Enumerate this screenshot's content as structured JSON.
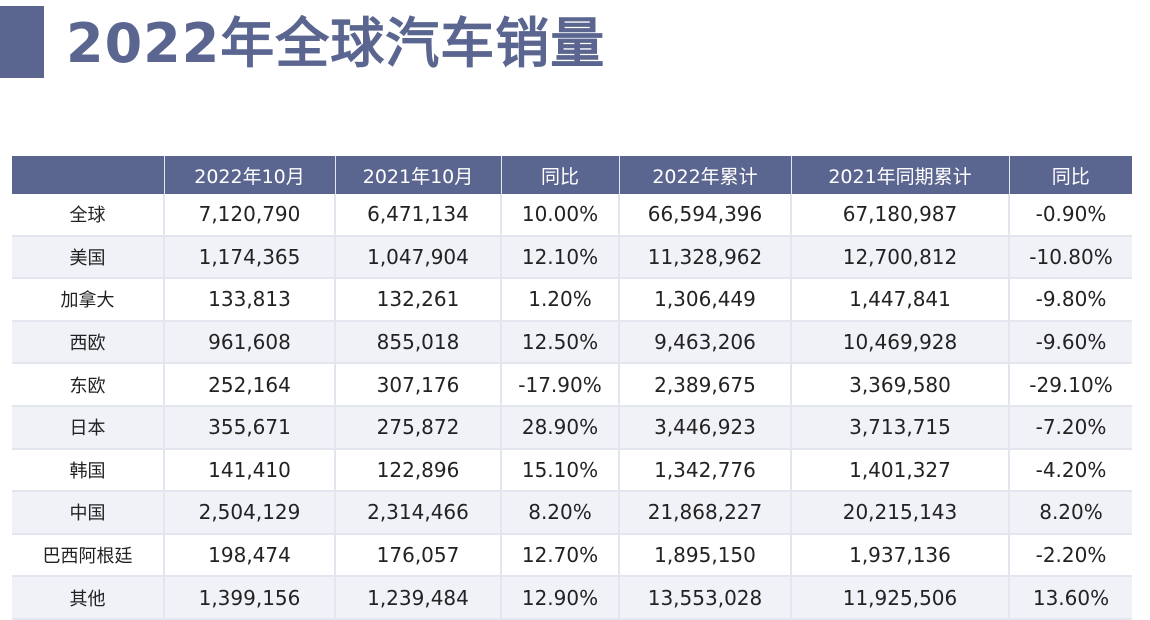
{
  "title": "2022年全球汽车销量",
  "chart_data": {
    "type": "table",
    "title": "2022年全球汽车销量",
    "columns": [
      "",
      "2022年10月",
      "2021年10月",
      "同比",
      "2022年累计",
      "2021年同期累计",
      "同比"
    ],
    "rows": [
      [
        "全球",
        "7,120,790",
        "6,471,134",
        "10.00%",
        "66,594,396",
        "67,180,987",
        "-0.90%"
      ],
      [
        "美国",
        "1,174,365",
        "1,047,904",
        "12.10%",
        "11,328,962",
        "12,700,812",
        "-10.80%"
      ],
      [
        "加拿大",
        "133,813",
        "132,261",
        "1.20%",
        "1,306,449",
        "1,447,841",
        "-9.80%"
      ],
      [
        "西欧",
        "961,608",
        "855,018",
        "12.50%",
        "9,463,206",
        "10,469,928",
        "-9.60%"
      ],
      [
        "东欧",
        "252,164",
        "307,176",
        "-17.90%",
        "2,389,675",
        "3,369,580",
        "-29.10%"
      ],
      [
        "日本",
        "355,671",
        "275,872",
        "28.90%",
        "3,446,923",
        "3,713,715",
        "-7.20%"
      ],
      [
        "韩国",
        "141,410",
        "122,896",
        "15.10%",
        "1,342,776",
        "1,401,327",
        "-4.20%"
      ],
      [
        "中国",
        "2,504,129",
        "2,314,466",
        "8.20%",
        "21,868,227",
        "20,215,143",
        "8.20%"
      ],
      [
        "巴西阿根廷",
        "198,474",
        "176,057",
        "12.70%",
        "1,895,150",
        "1,937,136",
        "-2.20%"
      ],
      [
        "其他",
        "1,399,156",
        "1,239,484",
        "12.90%",
        "13,553,028",
        "11,925,506",
        "13.60%"
      ]
    ]
  },
  "colors": {
    "accent": "#5b6690",
    "header_text": "#ffffff",
    "row_alt": "#f1f2f7",
    "grid": "#e3e6ef"
  }
}
